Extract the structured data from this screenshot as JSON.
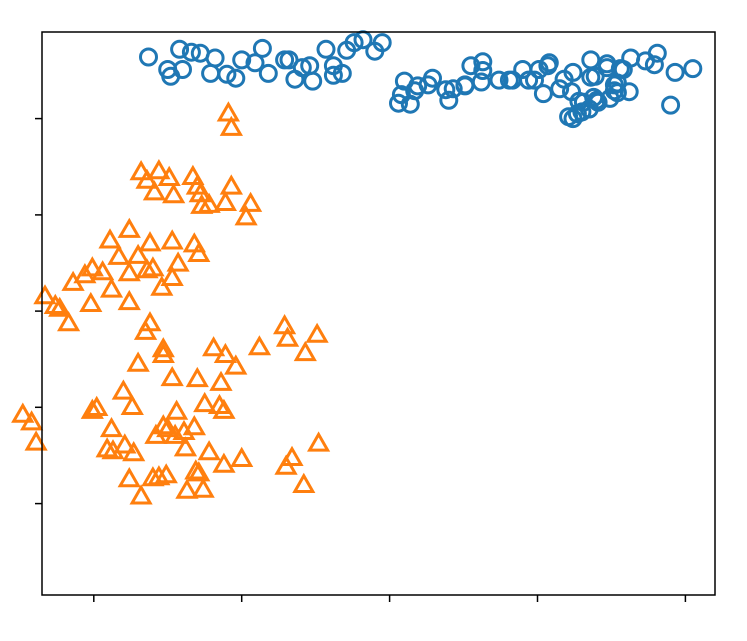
{
  "chart_data": {
    "type": "scatter",
    "title": "",
    "xlabel": "",
    "ylabel": "",
    "xlim": [
      -0.35,
      4.2
    ],
    "ylim": [
      -0.95,
      4.9
    ],
    "x_ticks": [
      0,
      1,
      2,
      3,
      4
    ],
    "y_ticks": [
      0,
      1,
      2,
      3,
      4
    ],
    "tick_labels_visible": false,
    "grid": false,
    "legend": null,
    "series": [
      {
        "marker": "circle",
        "color": "#1f77b4",
        "points": [
          [
            4.05,
            4.52
          ],
          [
            3.93,
            4.48
          ],
          [
            3.9,
            4.14
          ],
          [
            3.79,
            4.56
          ],
          [
            3.63,
            4.63
          ],
          [
            3.62,
            4.28
          ],
          [
            3.54,
            4.37
          ],
          [
            3.36,
            4.43
          ],
          [
            3.3,
            4.07
          ],
          [
            3.28,
            4.18
          ],
          [
            3.23,
            4.28
          ],
          [
            3.15,
            4.31
          ],
          [
            3.07,
            4.55
          ],
          [
            2.98,
            4.4
          ],
          [
            2.9,
            4.51
          ],
          [
            2.81,
            4.4
          ],
          [
            2.63,
            4.59
          ],
          [
            2.62,
            4.38
          ],
          [
            2.55,
            4.55
          ],
          [
            2.43,
            4.31
          ],
          [
            2.4,
            4.19
          ],
          [
            2.38,
            4.3
          ],
          [
            2.29,
            4.42
          ],
          [
            2.26,
            4.35
          ],
          [
            2.19,
            4.34
          ],
          [
            2.17,
            4.29
          ],
          [
            2.14,
            4.15
          ],
          [
            2.1,
            4.39
          ],
          [
            2.08,
            4.25
          ],
          [
            2.06,
            4.16
          ],
          [
            1.9,
            4.7
          ],
          [
            1.95,
            4.79
          ],
          [
            1.82,
            4.82
          ],
          [
            1.76,
            4.79
          ],
          [
            1.71,
            4.71
          ],
          [
            1.68,
            4.47
          ],
          [
            1.62,
            4.45
          ],
          [
            1.62,
            4.55
          ],
          [
            1.57,
            4.72
          ],
          [
            1.46,
            4.55
          ],
          [
            1.36,
            4.41
          ],
          [
            1.32,
            4.61
          ],
          [
            1.18,
            4.47
          ],
          [
            1.14,
            4.73
          ],
          [
            1.09,
            4.58
          ],
          [
            1.0,
            4.61
          ],
          [
            0.96,
            4.42
          ],
          [
            0.9,
            4.46
          ],
          [
            0.82,
            4.63
          ],
          [
            0.79,
            4.47
          ],
          [
            0.72,
            4.68
          ],
          [
            0.66,
            4.69
          ],
          [
            0.6,
            4.51
          ],
          [
            0.58,
            4.72
          ],
          [
            0.52,
            4.44
          ],
          [
            0.5,
            4.51
          ],
          [
            0.37,
            4.64
          ],
          [
            1.29,
            4.61
          ],
          [
            1.41,
            4.53
          ],
          [
            1.48,
            4.39
          ],
          [
            2.51,
            4.34
          ],
          [
            2.63,
            4.5
          ],
          [
            2.74,
            4.4
          ],
          [
            2.51,
            4.35
          ],
          [
            3.08,
            4.58
          ],
          [
            3.01,
            4.51
          ],
          [
            2.94,
            4.4
          ],
          [
            2.83,
            4.4
          ],
          [
            3.18,
            4.41
          ],
          [
            3.36,
            4.61
          ],
          [
            3.56,
            4.52
          ],
          [
            3.47,
            4.57
          ],
          [
            3.73,
            4.6
          ],
          [
            3.81,
            4.68
          ],
          [
            3.52,
            4.29
          ],
          [
            3.39,
            4.44
          ],
          [
            3.4,
            4.19
          ],
          [
            3.54,
            4.27
          ],
          [
            3.35,
            4.1
          ],
          [
            3.27,
            4.05
          ],
          [
            3.31,
            4.17
          ],
          [
            3.04,
            4.26
          ],
          [
            3.24,
            4.48
          ],
          [
            3.38,
            4.22
          ],
          [
            3.52,
            4.35
          ],
          [
            3.47,
            4.53
          ],
          [
            3.58,
            4.51
          ],
          [
            3.21,
            4.02
          ],
          [
            3.49,
            4.21
          ],
          [
            3.41,
            4.17
          ],
          [
            3.24,
            4.0
          ]
        ]
      },
      {
        "marker": "triangle",
        "color": "#ff7f0e",
        "points": [
          [
            0.91,
            4.05
          ],
          [
            0.93,
            3.9
          ],
          [
            0.51,
            3.38
          ],
          [
            0.54,
            3.2
          ],
          [
            0.67,
            3.39
          ],
          [
            0.7,
            3.29
          ],
          [
            0.78,
            3.1
          ],
          [
            0.93,
            3.29
          ],
          [
            0.89,
            3.12
          ],
          [
            1.06,
            3.11
          ],
          [
            1.03,
            2.97
          ],
          [
            0.72,
            3.21
          ],
          [
            0.73,
            3.09
          ],
          [
            0.44,
            3.45
          ],
          [
            0.41,
            3.23
          ],
          [
            0.36,
            3.35
          ],
          [
            0.32,
            3.44
          ],
          [
            0.53,
            2.72
          ],
          [
            0.57,
            2.49
          ],
          [
            0.71,
            2.59
          ],
          [
            0.68,
            2.69
          ],
          [
            0.53,
            2.34
          ],
          [
            0.46,
            2.24
          ],
          [
            0.4,
            2.44
          ],
          [
            0.36,
            2.42
          ],
          [
            0.3,
            2.57
          ],
          [
            0.24,
            2.84
          ],
          [
            0.38,
            2.7
          ],
          [
            0.11,
            2.73
          ],
          [
            0.17,
            2.56
          ],
          [
            0.24,
            2.39
          ],
          [
            0.24,
            2.09
          ],
          [
            0.12,
            2.22
          ],
          [
            0.06,
            2.4
          ],
          [
            -0.01,
            2.44
          ],
          [
            -0.06,
            2.37
          ],
          [
            -0.02,
            2.07
          ],
          [
            -0.14,
            2.29
          ],
          [
            -0.26,
            2.05
          ],
          [
            -0.33,
            2.15
          ],
          [
            -0.23,
            2.02
          ],
          [
            -0.17,
            1.87
          ],
          [
            0.38,
            1.87
          ],
          [
            0.35,
            1.78
          ],
          [
            0.47,
            1.6
          ],
          [
            0.47,
            1.54
          ],
          [
            0.53,
            1.3
          ],
          [
            0.7,
            1.29
          ],
          [
            0.81,
            1.61
          ],
          [
            0.86,
            1.25
          ],
          [
            0.89,
            1.54
          ],
          [
            0.96,
            1.42
          ],
          [
            1.12,
            1.62
          ],
          [
            1.29,
            1.84
          ],
          [
            1.31,
            1.71
          ],
          [
            1.43,
            1.56
          ],
          [
            1.51,
            1.75
          ],
          [
            0.88,
            0.96
          ],
          [
            0.85,
            1.01
          ],
          [
            0.75,
            1.03
          ],
          [
            0.68,
            0.79
          ],
          [
            0.55,
            0.7
          ],
          [
            0.5,
            0.77
          ],
          [
            0.42,
            0.7
          ],
          [
            0.27,
            0.52
          ],
          [
            0.21,
            0.6
          ],
          [
            0.13,
            0.54
          ],
          [
            -0.01,
            0.96
          ],
          [
            0.02,
            0.99
          ],
          [
            0.12,
            0.77
          ],
          [
            0.09,
            0.56
          ],
          [
            1.0,
            0.46
          ],
          [
            0.88,
            0.4
          ],
          [
            0.78,
            0.53
          ],
          [
            0.62,
            0.57
          ],
          [
            0.49,
            0.29
          ],
          [
            0.44,
            0.27
          ],
          [
            0.4,
            0.26
          ],
          [
            0.63,
            0.13
          ],
          [
            0.32,
            0.07
          ],
          [
            0.24,
            0.25
          ],
          [
            1.3,
            0.38
          ],
          [
            1.34,
            0.47
          ],
          [
            1.42,
            0.19
          ],
          [
            0.69,
            0.33
          ],
          [
            0.71,
            0.31
          ],
          [
            0.74,
            0.14
          ],
          [
            1.52,
            0.62
          ],
          [
            0.61,
            0.74
          ],
          [
            0.56,
            0.95
          ],
          [
            0.47,
            0.8
          ],
          [
            0.26,
            1.0
          ],
          [
            0.2,
            1.16
          ],
          [
            0.3,
            1.45
          ],
          [
            -0.42,
            0.84
          ],
          [
            -0.39,
            0.63
          ],
          [
            -0.48,
            0.92
          ]
        ]
      }
    ]
  }
}
